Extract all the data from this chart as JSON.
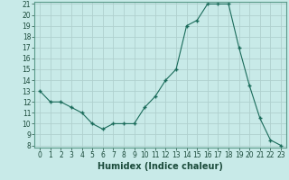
{
  "xlabel": "Humidex (Indice chaleur)",
  "x": [
    0,
    1,
    2,
    3,
    4,
    5,
    6,
    7,
    8,
    9,
    10,
    11,
    12,
    13,
    14,
    15,
    16,
    17,
    18,
    19,
    20,
    21,
    22,
    23
  ],
  "y": [
    13,
    12,
    12,
    11.5,
    11,
    10,
    9.5,
    10,
    10,
    10,
    11.5,
    12.5,
    14,
    15,
    19,
    19.5,
    21,
    21,
    21,
    17,
    13.5,
    10.5,
    8.5,
    8
  ],
  "ylim": [
    8,
    21
  ],
  "yticks": [
    8,
    9,
    10,
    11,
    12,
    13,
    14,
    15,
    16,
    17,
    18,
    19,
    20,
    21
  ],
  "xticks": [
    0,
    1,
    2,
    3,
    4,
    5,
    6,
    7,
    8,
    9,
    10,
    11,
    12,
    13,
    14,
    15,
    16,
    17,
    18,
    19,
    20,
    21,
    22,
    23
  ],
  "line_color": "#1a6b5a",
  "marker_color": "#1a6b5a",
  "bg_color": "#c8eae8",
  "grid_color": "#b0d0ce",
  "label_fontsize": 7,
  "tick_fontsize": 5.5
}
